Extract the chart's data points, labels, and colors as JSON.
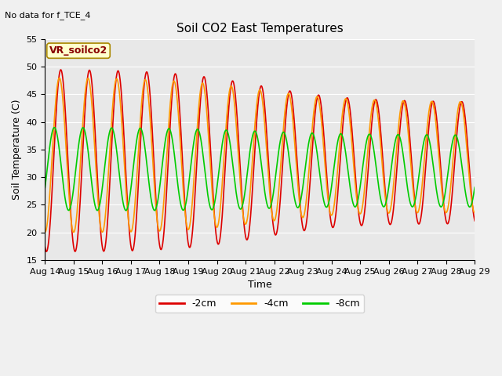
{
  "title": "Soil CO2 East Temperatures",
  "subtitle": "No data for f_TCE_4",
  "xlabel": "Time",
  "ylabel": "Soil Temperature (C)",
  "ylim": [
    15,
    55
  ],
  "annotation": "VR_soilco2",
  "legend": [
    "-2cm",
    "-4cm",
    "-8cm"
  ],
  "colors": {
    "2cm": "#dd0000",
    "4cm": "#ff9900",
    "8cm": "#00cc00"
  },
  "x_labels": [
    "Aug 14",
    "Aug 15",
    "Aug 16",
    "Aug 17",
    "Aug 18",
    "Aug 19",
    "Aug 20",
    "Aug 21",
    "Aug 22",
    "Aug 23",
    "Aug 24",
    "Aug 25",
    "Aug 26",
    "Aug 27",
    "Aug 28",
    "Aug 29"
  ],
  "background_color": "#e8e8e8",
  "fig_bgcolor": "#f0f0f0",
  "yticks": [
    15,
    20,
    25,
    30,
    35,
    40,
    45,
    50,
    55
  ],
  "n_days": 15
}
